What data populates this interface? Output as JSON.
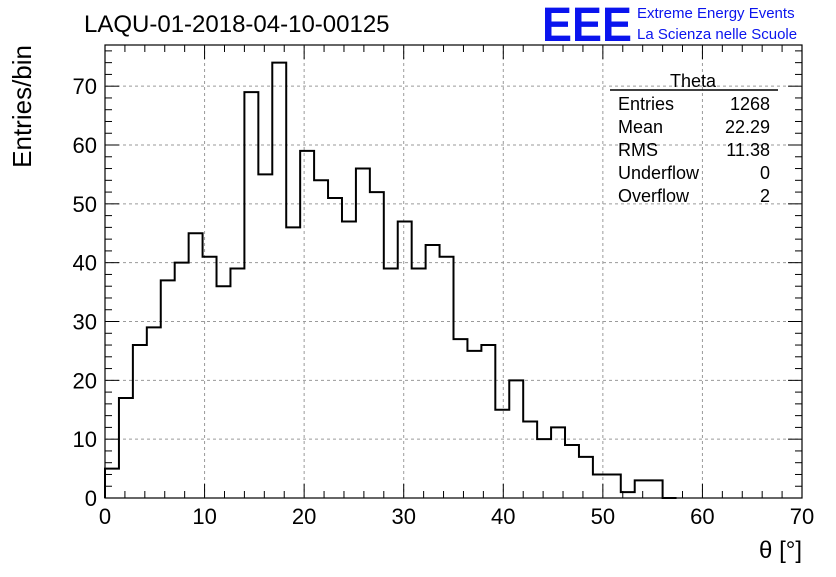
{
  "header": {
    "run_title": "LAQU-01-2018-04-10-00125",
    "logo_text": "EEE",
    "org_line1": "Extreme Energy Events",
    "org_line2": "La Scienza nelle Scuole",
    "logo_color": "#0a14ee"
  },
  "stats_box": {
    "title": "Theta",
    "rows": [
      {
        "label": "Entries",
        "value": "1268"
      },
      {
        "label": "Mean",
        "value": "22.29"
      },
      {
        "label": "RMS",
        "value": "11.38"
      },
      {
        "label": "Underflow",
        "value": "0"
      },
      {
        "label": "Overflow",
        "value": "2"
      }
    ]
  },
  "chart_data": {
    "type": "bar",
    "style": "step-histogram",
    "title": "LAQU-01-2018-04-10-00125",
    "xlabel": "θ [°]",
    "ylabel": "Entries/bin",
    "xlim": [
      0,
      70
    ],
    "ylim": [
      0,
      77
    ],
    "grid": true,
    "bin_width": 1.4,
    "x_ticks": [
      0,
      10,
      20,
      30,
      40,
      50,
      60,
      70
    ],
    "y_ticks": [
      0,
      10,
      20,
      30,
      40,
      50,
      60,
      70
    ],
    "bin_low_edges": [
      0,
      1.4,
      2.8,
      4.2,
      5.6,
      7.0,
      8.4,
      9.8,
      11.2,
      12.6,
      14.0,
      15.4,
      16.8,
      18.2,
      19.6,
      21.0,
      22.4,
      23.8,
      25.2,
      26.6,
      28.0,
      29.4,
      30.8,
      32.2,
      33.6,
      35.0,
      36.4,
      37.8,
      39.2,
      40.6,
      42.0,
      43.4,
      44.8,
      46.2,
      47.6,
      49.0,
      50.4,
      51.8,
      53.2,
      54.6,
      56.0,
      57.4,
      58.8,
      60.2,
      61.6,
      63.0,
      64.4,
      65.8,
      67.2,
      68.6
    ],
    "values": [
      5,
      17,
      26,
      29,
      37,
      40,
      45,
      41,
      36,
      39,
      69,
      55,
      74,
      46,
      59,
      54,
      51,
      47,
      56,
      52,
      39,
      47,
      39,
      43,
      41,
      27,
      25,
      26,
      15,
      20,
      13,
      10,
      12,
      9,
      7,
      4,
      4,
      1,
      3,
      3,
      0,
      0,
      0,
      0,
      0,
      0,
      0,
      0,
      0,
      0
    ]
  }
}
